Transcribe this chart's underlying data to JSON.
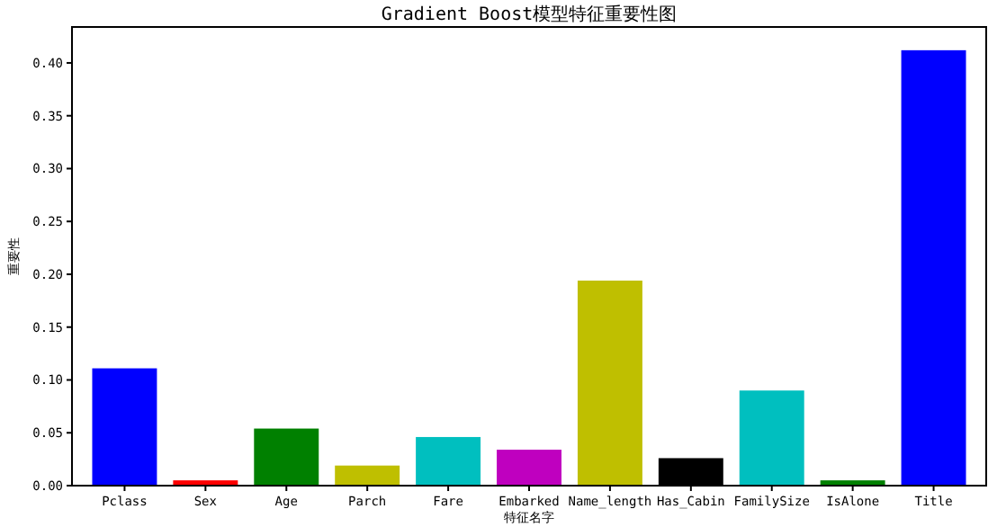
{
  "chart_data": {
    "type": "bar",
    "title": "Gradient Boost模型特征重要性图",
    "xlabel": "特征名字",
    "ylabel": "重要性",
    "categories": [
      "Pclass",
      "Sex",
      "Age",
      "Parch",
      "Fare",
      "Embarked",
      "Name_length",
      "Has_Cabin",
      "FamilySize",
      "IsAlone",
      "Title"
    ],
    "values": [
      0.111,
      0.005,
      0.054,
      0.019,
      0.046,
      0.034,
      0.194,
      0.026,
      0.09,
      0.005,
      0.412
    ],
    "colors": [
      "#0000ff",
      "#ff0000",
      "#008000",
      "#bfbf00",
      "#00bfbf",
      "#bf00bf",
      "#bfbf00",
      "#000000",
      "#00bfbf",
      "#008000",
      "#0000ff"
    ],
    "ylim": [
      0,
      0.434
    ],
    "yticks": [
      {
        "value": 0,
        "label": "0.00"
      },
      {
        "value": 0.05,
        "label": "0.05"
      },
      {
        "value": 0.1,
        "label": "0.10"
      },
      {
        "value": 0.15,
        "label": "0.15"
      },
      {
        "value": 0.2,
        "label": "0.20"
      },
      {
        "value": 0.25,
        "label": "0.25"
      },
      {
        "value": 0.3,
        "label": "0.30"
      },
      {
        "value": 0.35,
        "label": "0.35"
      },
      {
        "value": 0.4,
        "label": "0.40"
      }
    ],
    "grid": false
  }
}
